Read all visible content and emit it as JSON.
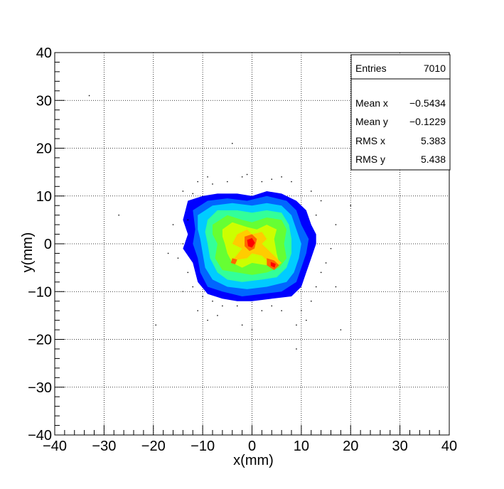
{
  "chart_data": {
    "type": "heatmap",
    "title": "",
    "xlabel": "x(mm)",
    "ylabel": "y(mm)",
    "xlim": [
      -40,
      40
    ],
    "ylim": [
      -40,
      40
    ],
    "xticks": [
      "−40",
      "−30",
      "−20",
      "−10",
      "0",
      "10",
      "20",
      "30",
      "40"
    ],
    "yticks": [
      "40",
      "30",
      "20",
      "10",
      "0",
      "−10",
      "−20",
      "−30",
      "−40"
    ],
    "grid": true,
    "legend_position": "top-right",
    "colormap": [
      "#0000ff",
      "#0066ff",
      "#00ccff",
      "#33ff99",
      "#66ff33",
      "#ccff00",
      "#ffcc00",
      "#ff6600",
      "#ff0000"
    ],
    "stats": {
      "entries_label": "Entries",
      "entries": "7010",
      "mean_x_label": "Mean x",
      "mean_x": "−0.5434",
      "mean_y_label": "Mean y",
      "mean_y": "−0.1229",
      "rms_x_label": "RMS x",
      "rms_x": "5.383",
      "rms_y_label": "RMS y",
      "rms_y": "5.438"
    },
    "contours": [
      {
        "level": 1,
        "color": "#0000ff",
        "points": [
          [
            -13,
            9
          ],
          [
            -10,
            10
          ],
          [
            -7,
            10.5
          ],
          [
            -3,
            10.5
          ],
          [
            0,
            10
          ],
          [
            3,
            11
          ],
          [
            6,
            10.5
          ],
          [
            9,
            9
          ],
          [
            11,
            7
          ],
          [
            12,
            4
          ],
          [
            13,
            2
          ],
          [
            13,
            0
          ],
          [
            12,
            -3
          ],
          [
            11,
            -6
          ],
          [
            10,
            -9
          ],
          [
            8,
            -11
          ],
          [
            4,
            -11.5
          ],
          [
            0,
            -12
          ],
          [
            -3,
            -12
          ],
          [
            -6,
            -11.5
          ],
          [
            -9,
            -10.5
          ],
          [
            -11,
            -8
          ],
          [
            -12,
            -4
          ],
          [
            -14,
            -1
          ],
          [
            -13,
            2
          ],
          [
            -14,
            5
          ]
        ]
      },
      {
        "level": 2,
        "color": "#0066ff",
        "points": [
          [
            -12,
            7
          ],
          [
            -9,
            9
          ],
          [
            -5,
            9.5
          ],
          [
            -1,
            9
          ],
          [
            3,
            10
          ],
          [
            7,
            9
          ],
          [
            9,
            7
          ],
          [
            10,
            4
          ],
          [
            11.5,
            1
          ],
          [
            11,
            -2
          ],
          [
            10,
            -5
          ],
          [
            9,
            -8
          ],
          [
            6,
            -10
          ],
          [
            2,
            -10.5
          ],
          [
            -2,
            -11
          ],
          [
            -6,
            -10
          ],
          [
            -9,
            -9
          ],
          [
            -10.5,
            -6
          ],
          [
            -11,
            -3
          ],
          [
            -12,
            0
          ],
          [
            -11.5,
            3
          ]
        ]
      },
      {
        "level": 3,
        "color": "#00ccff",
        "points": [
          [
            -11,
            6
          ],
          [
            -8,
            8
          ],
          [
            -4,
            8.5
          ],
          [
            0,
            8
          ],
          [
            3,
            8.5
          ],
          [
            6,
            8
          ],
          [
            8,
            6
          ],
          [
            9,
            3
          ],
          [
            10,
            0
          ],
          [
            9.5,
            -3
          ],
          [
            8.5,
            -6
          ],
          [
            7,
            -8
          ],
          [
            3,
            -9
          ],
          [
            -1,
            -9.5
          ],
          [
            -5,
            -9
          ],
          [
            -8,
            -7.5
          ],
          [
            -9.5,
            -5
          ],
          [
            -10,
            -2
          ],
          [
            -10.5,
            1
          ],
          [
            -11,
            3
          ]
        ]
      },
      {
        "level": 4,
        "color": "#33ff99",
        "points": [
          [
            -9,
            5
          ],
          [
            -7,
            7
          ],
          [
            -3,
            7
          ],
          [
            0,
            6.5
          ],
          [
            3,
            7
          ],
          [
            6,
            6.5
          ],
          [
            7.5,
            4
          ],
          [
            8,
            1
          ],
          [
            8,
            -2
          ],
          [
            7,
            -5
          ],
          [
            5,
            -7
          ],
          [
            2,
            -7.5
          ],
          [
            -2,
            -8
          ],
          [
            -5,
            -7.5
          ],
          [
            -7,
            -6
          ],
          [
            -8.5,
            -3
          ],
          [
            -9,
            0
          ],
          [
            -9.5,
            2.5
          ]
        ]
      },
      {
        "level": 5,
        "color": "#66ff33",
        "points": [
          [
            -8,
            4
          ],
          [
            -5,
            6
          ],
          [
            -2,
            5
          ],
          [
            0,
            4.5
          ],
          [
            3,
            5.5
          ],
          [
            6,
            5
          ],
          [
            7,
            3
          ],
          [
            6.5,
            0
          ],
          [
            7,
            -3
          ],
          [
            5.5,
            -5
          ],
          [
            3,
            -6
          ],
          [
            0,
            -6.5
          ],
          [
            -3,
            -6
          ],
          [
            -6,
            -5.5
          ],
          [
            -7.5,
            -3
          ],
          [
            -7,
            0
          ],
          [
            -8,
            2
          ]
        ]
      },
      {
        "level": 6,
        "color": "#ccff00",
        "points": [
          [
            -6,
            3
          ],
          [
            -4,
            4.5
          ],
          [
            -1,
            3.5
          ],
          [
            1,
            3
          ],
          [
            3,
            4
          ],
          [
            5,
            3
          ],
          [
            4.5,
            1
          ],
          [
            5,
            -2
          ],
          [
            5.5,
            -4
          ],
          [
            3,
            -4.5
          ],
          [
            0,
            -4
          ],
          [
            -2,
            -5
          ],
          [
            -4,
            -4
          ],
          [
            -5,
            -2
          ],
          [
            -5.5,
            0
          ],
          [
            -6,
            1.5
          ]
        ]
      },
      {
        "level": 7,
        "color": "#ffcc00",
        "points": [
          [
            -3,
            2
          ],
          [
            -1,
            3
          ],
          [
            0,
            2
          ],
          [
            2,
            2.5
          ],
          [
            3,
            1
          ],
          [
            2,
            0
          ],
          [
            4,
            -2
          ],
          [
            6,
            -4
          ],
          [
            4.5,
            -5
          ],
          [
            2,
            -2.5
          ],
          [
            0,
            -2
          ],
          [
            -1,
            -3
          ],
          [
            -4,
            -3.5
          ],
          [
            -2,
            -1
          ],
          [
            -4,
            0
          ],
          [
            -3.5,
            1
          ]
        ]
      },
      {
        "level": 8,
        "color": "#ff6600",
        "points": [
          [
            -1.5,
            1.5
          ],
          [
            0,
            2
          ],
          [
            1,
            1
          ],
          [
            0.5,
            -1
          ],
          [
            -0.5,
            -1.5
          ],
          [
            -1.5,
            -0.5
          ]
        ]
      },
      {
        "level": 9,
        "color": "#ff0000",
        "points": [
          [
            -1,
            0.8
          ],
          [
            0,
            1.2
          ],
          [
            0.6,
            0.2
          ],
          [
            0,
            -0.8
          ],
          [
            -0.8,
            -0.5
          ]
        ]
      },
      {
        "level": 8,
        "color": "#ff6600",
        "points": [
          [
            3,
            -3
          ],
          [
            4.5,
            -3.5
          ],
          [
            5.5,
            -4.5
          ],
          [
            4.5,
            -5.5
          ],
          [
            3,
            -4.5
          ]
        ]
      },
      {
        "level": 9,
        "color": "#ff0000",
        "points": [
          [
            3.8,
            -3.8
          ],
          [
            4.8,
            -4.2
          ],
          [
            4.6,
            -5
          ],
          [
            3.8,
            -4.6
          ]
        ]
      },
      {
        "level": 8,
        "color": "#ff6600",
        "points": [
          [
            -4,
            -3
          ],
          [
            -3,
            -3.3
          ],
          [
            -3.4,
            -4.3
          ],
          [
            -4.3,
            -4
          ]
        ]
      }
    ],
    "scatter_points": [
      [
        -33,
        31
      ],
      [
        -27,
        6
      ],
      [
        -19.5,
        -17
      ],
      [
        -16,
        4
      ],
      [
        -14,
        11
      ],
      [
        -12,
        10.5
      ],
      [
        -14,
        0
      ],
      [
        -15,
        -3
      ],
      [
        -13,
        -6
      ],
      [
        -11,
        13
      ],
      [
        -9,
        14
      ],
      [
        -8,
        12.5
      ],
      [
        -5,
        13
      ],
      [
        -2,
        14
      ],
      [
        -1,
        14.5
      ],
      [
        2,
        13
      ],
      [
        4,
        13.5
      ],
      [
        6,
        14
      ],
      [
        8,
        13
      ],
      [
        12,
        11
      ],
      [
        14,
        9
      ],
      [
        13,
        6
      ],
      [
        17,
        4
      ],
      [
        16,
        -1
      ],
      [
        15,
        -4
      ],
      [
        14,
        -6
      ],
      [
        13,
        -9
      ],
      [
        12,
        -12
      ],
      [
        10,
        -14
      ],
      [
        9,
        -17
      ],
      [
        9,
        -22
      ],
      [
        6,
        -14
      ],
      [
        4,
        -13
      ],
      [
        2,
        -14
      ],
      [
        0,
        -18
      ],
      [
        -2,
        -17
      ],
      [
        -3,
        -13
      ],
      [
        -6,
        -13
      ],
      [
        -8,
        -12
      ],
      [
        -10,
        -11
      ],
      [
        -12,
        -9
      ],
      [
        -14,
        -10
      ],
      [
        -4,
        21
      ],
      [
        -13,
        5
      ],
      [
        -17,
        -2
      ],
      [
        -7,
        -15
      ],
      [
        17,
        -9
      ],
      [
        18,
        -18
      ],
      [
        11,
        -16
      ],
      [
        -9,
        -16
      ],
      [
        20,
        8
      ],
      [
        -11,
        -14
      ]
    ]
  }
}
